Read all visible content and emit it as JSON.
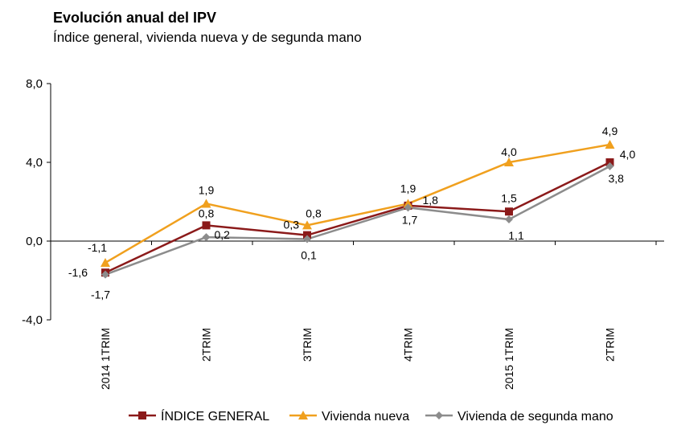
{
  "chart_data": {
    "type": "line",
    "title": "Evolución anual del IPV",
    "subtitle": "Índice general, vivienda nueva y de segunda mano",
    "categories": [
      "2014 1TRIM",
      "2TRIM",
      "3TRIM",
      "4TRIM",
      "2015 1TRIM",
      "2TRIM"
    ],
    "ylim": [
      -4,
      8
    ],
    "yticks": [
      -4,
      0,
      4,
      8
    ],
    "ytick_labels": [
      "-4,0",
      "0,0",
      "4,0",
      "8,0"
    ],
    "series": [
      {
        "name": "ÍNDICE GENERAL",
        "color": "#8b1a1a",
        "marker": "square",
        "values": [
          -1.6,
          0.8,
          0.3,
          1.8,
          1.5,
          4.0
        ],
        "labels": [
          "-1,6",
          "0,8",
          "0,3",
          "1,8",
          "1,5",
          "4,0"
        ]
      },
      {
        "name": "Vivienda nueva",
        "color": "#f0a01e",
        "marker": "triangle",
        "values": [
          -1.1,
          1.9,
          0.8,
          1.9,
          4.0,
          4.9
        ],
        "labels": [
          "-1,1",
          "1,9",
          "0,8",
          "1,9",
          "4,0",
          "4,9"
        ]
      },
      {
        "name": "Vivienda de segunda mano",
        "color": "#8c8c8c",
        "marker": "diamond",
        "values": [
          -1.7,
          0.2,
          0.1,
          1.7,
          1.1,
          3.8
        ],
        "labels": [
          "-1,7",
          "0,2",
          "0,1",
          "1,7",
          "1,1",
          "3,8"
        ]
      }
    ],
    "legend_position": "bottom"
  }
}
